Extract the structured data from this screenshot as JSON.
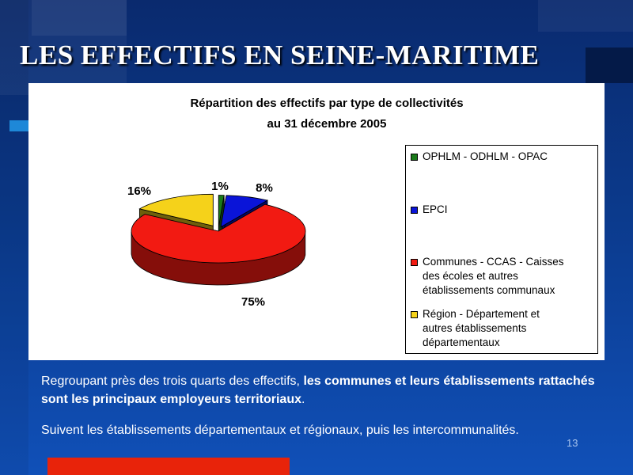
{
  "slide": {
    "title": "LES EFFECTIFS EN SEINE-MARITIME",
    "paragraph1": {
      "normal": "Regroupant près des trois quarts des effectifs, ",
      "bold": "les communes et leurs établissements rattachés sont les principaux employeurs territoriaux",
      "end": "."
    },
    "paragraph2": " Suivent les établissements départementaux et régionaux, puis les intercommunalités.",
    "page_number": "13"
  },
  "colors": {
    "ophlm": "#1a7a1a",
    "epci": "#0a14d8",
    "communes": "#f21a12",
    "region": "#f5d21a",
    "title_text": "#ffffff",
    "background": "#0b3a8c"
  },
  "chart_data": {
    "type": "pie",
    "title": "Répartition des effectifs par type de collectivités",
    "subtitle": "au 31 décembre 2005",
    "series": [
      {
        "name": "OPHLM - ODHLM - OPAC",
        "value": 1,
        "label": "1%",
        "color": "#1a7a1a"
      },
      {
        "name": "EPCI",
        "value": 8,
        "label": "8%",
        "color": "#0a14d8"
      },
      {
        "name": "Communes - CCAS - Caisses des écoles et autres établissements communaux",
        "value": 75,
        "label": "75%",
        "color": "#f21a12"
      },
      {
        "name": "Région - Département et autres établissements départementaux",
        "value": 16,
        "label": "16%",
        "color": "#f5d21a"
      }
    ],
    "legend_position": "right",
    "exploded": true,
    "three_d": true,
    "legend": [
      {
        "line1": "OPHLM - ODHLM - OPAC",
        "line2": "",
        "line3": ""
      },
      {
        "line1": "EPCI",
        "line2": "",
        "line3": ""
      },
      {
        "line1": "Communes - CCAS - Caisses",
        "line2": "des écoles et autres",
        "line3": "établissements communaux"
      },
      {
        "line1": "Région - Département et",
        "line2": "autres établissements",
        "line3": "départementaux"
      }
    ]
  }
}
